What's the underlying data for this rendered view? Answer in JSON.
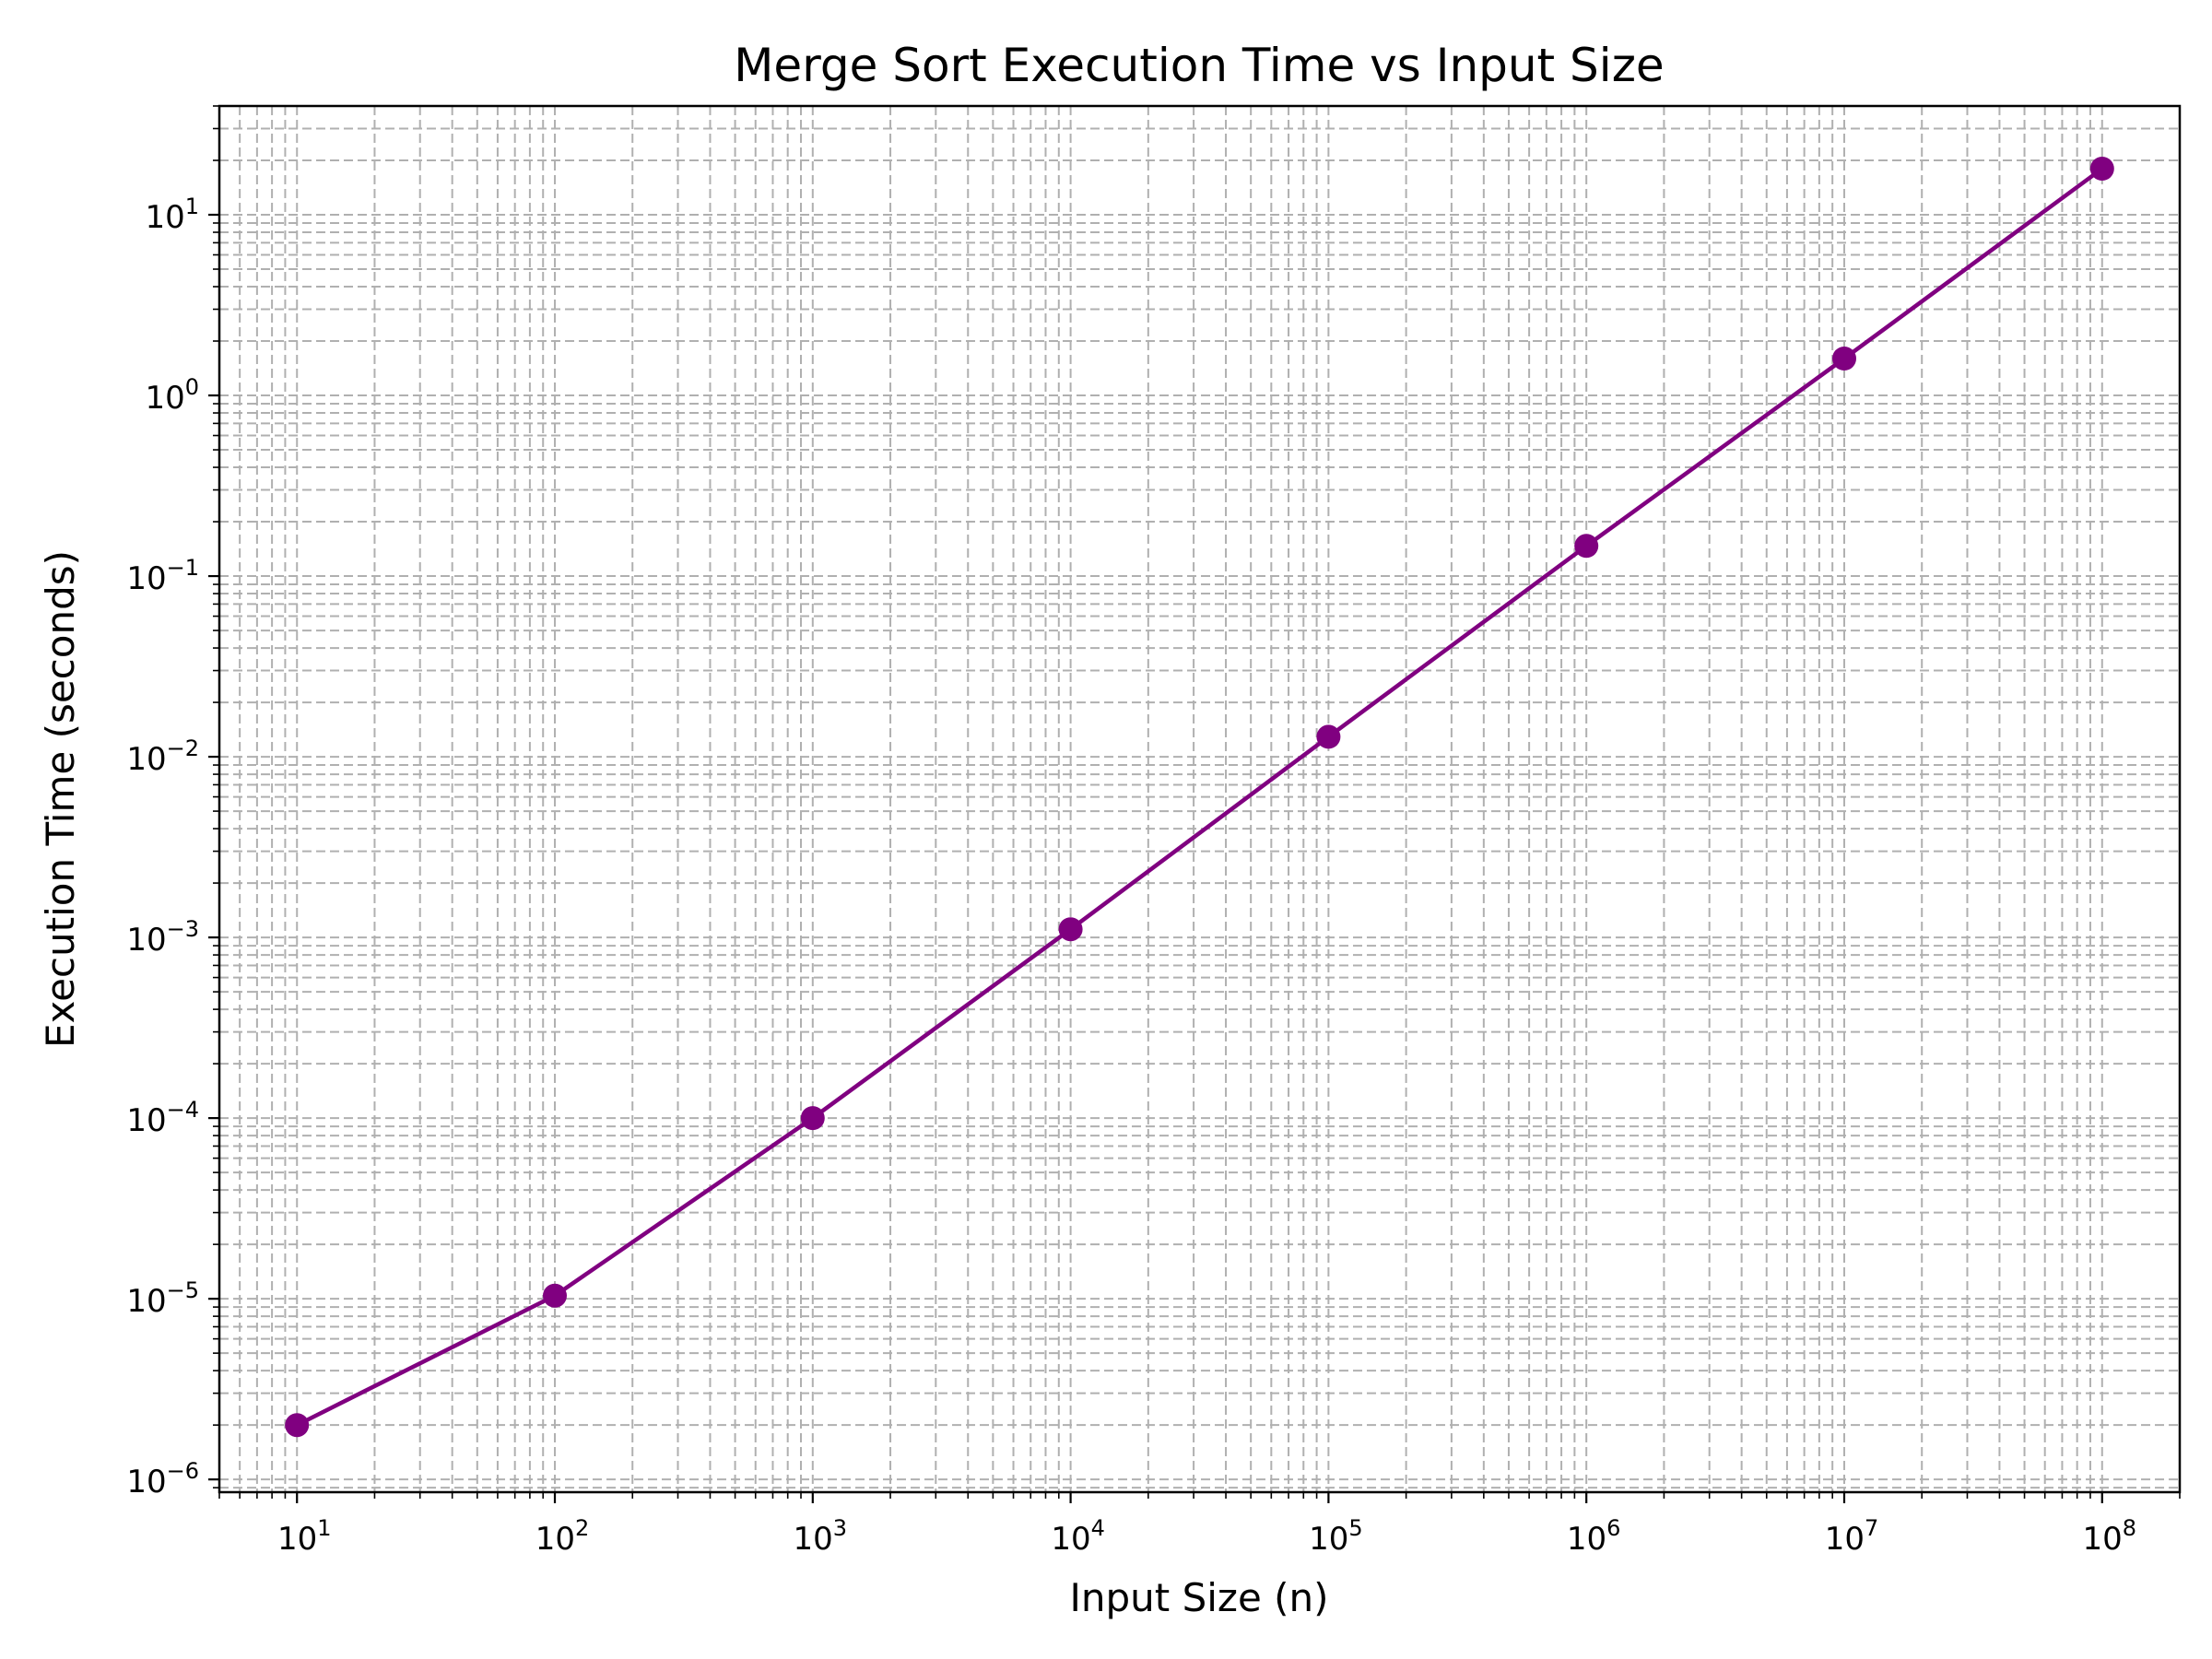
{
  "chart_data": {
    "type": "line",
    "title": "Merge Sort Execution Time vs Input Size",
    "xlabel": "Input Size (n)",
    "ylabel": "Execution Time (seconds)",
    "x_scale": "log",
    "y_scale": "log",
    "grid": true,
    "grid_which": "both",
    "legend": "none",
    "line_color": "#800080",
    "marker": "circle",
    "x_ticks": [
      {
        "base": "10",
        "exp": "1"
      },
      {
        "base": "10",
        "exp": "2"
      },
      {
        "base": "10",
        "exp": "3"
      },
      {
        "base": "10",
        "exp": "4"
      },
      {
        "base": "10",
        "exp": "5"
      },
      {
        "base": "10",
        "exp": "6"
      },
      {
        "base": "10",
        "exp": "7"
      },
      {
        "base": "10",
        "exp": "8"
      }
    ],
    "y_ticks": [
      {
        "base": "10",
        "exp": "−6"
      },
      {
        "base": "10",
        "exp": "−5"
      },
      {
        "base": "10",
        "exp": "−4"
      },
      {
        "base": "10",
        "exp": "−3"
      },
      {
        "base": "10",
        "exp": "−2"
      },
      {
        "base": "10",
        "exp": "−1"
      },
      {
        "base": "10",
        "exp": "0"
      },
      {
        "base": "10",
        "exp": "1"
      }
    ],
    "xlim": [
      5.0,
      200000000
    ],
    "ylim": [
      8.5e-07,
      40
    ],
    "x": [
      10,
      100,
      1000,
      10000,
      100000,
      1000000,
      10000000,
      100000000
    ],
    "values": [
      2e-06,
      1.04e-05,
      0.0001,
      0.00111,
      0.0129,
      0.147,
      1.6,
      18
    ]
  }
}
